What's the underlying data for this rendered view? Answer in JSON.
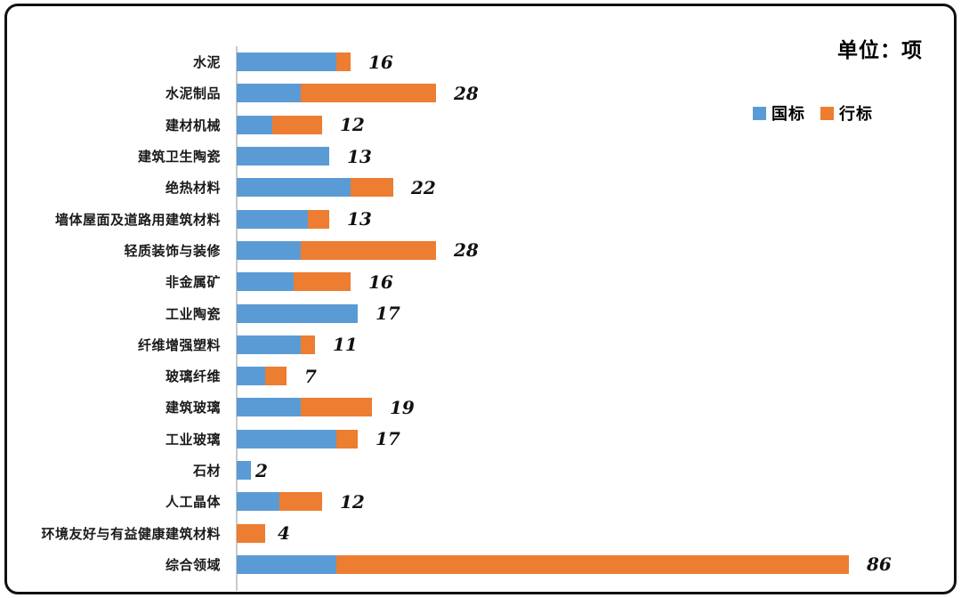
{
  "unit_label": "单位：项",
  "legend": {
    "items": [
      {
        "label": "国标",
        "color": "#5B9BD5"
      },
      {
        "label": "行标",
        "color": "#ED7D31"
      }
    ]
  },
  "chart_data": {
    "type": "bar",
    "orientation": "horizontal",
    "stacked": true,
    "unit": "项",
    "title": "",
    "xlabel": "",
    "ylabel": "",
    "xlim": [
      0,
      90
    ],
    "grid": false,
    "legend_position": "top-right",
    "categories": [
      "水泥",
      "水泥制品",
      "建材机械",
      "建筑卫生陶瓷",
      "绝热材料",
      "墙体屋面及道路用建筑材料",
      "轻质装饰与装修",
      "非金属矿",
      "工业陶瓷",
      "纤维增强塑料",
      "玻璃纤维",
      "建筑玻璃",
      "工业玻璃",
      "石材",
      "人工晶体",
      "环境友好与有益健康建筑材料",
      "综合领域"
    ],
    "series": [
      {
        "name": "国标",
        "color": "#5B9BD5",
        "values": [
          14,
          9,
          5,
          13,
          16,
          10,
          9,
          8,
          17,
          9,
          4,
          9,
          14,
          2,
          6,
          0,
          14
        ]
      },
      {
        "name": "行标",
        "color": "#ED7D31",
        "values": [
          2,
          19,
          7,
          0,
          6,
          3,
          19,
          8,
          0,
          2,
          3,
          10,
          3,
          0,
          6,
          4,
          72
        ]
      }
    ],
    "totals": [
      16,
      28,
      12,
      13,
      22,
      13,
      28,
      16,
      17,
      11,
      7,
      19,
      17,
      2,
      12,
      4,
      86
    ]
  }
}
